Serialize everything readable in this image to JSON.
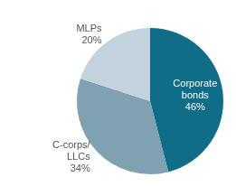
{
  "chart_data": {
    "type": "pie",
    "categories": [
      "Corporate bonds",
      "C-corps/LLCs",
      "MLPs"
    ],
    "values": [
      46,
      34,
      20
    ],
    "value_labels": [
      "46%",
      "34%",
      "20%"
    ],
    "colors": [
      "#0f6d87",
      "#7fa1b1",
      "#c3d3dd"
    ],
    "data_labels": true
  }
}
